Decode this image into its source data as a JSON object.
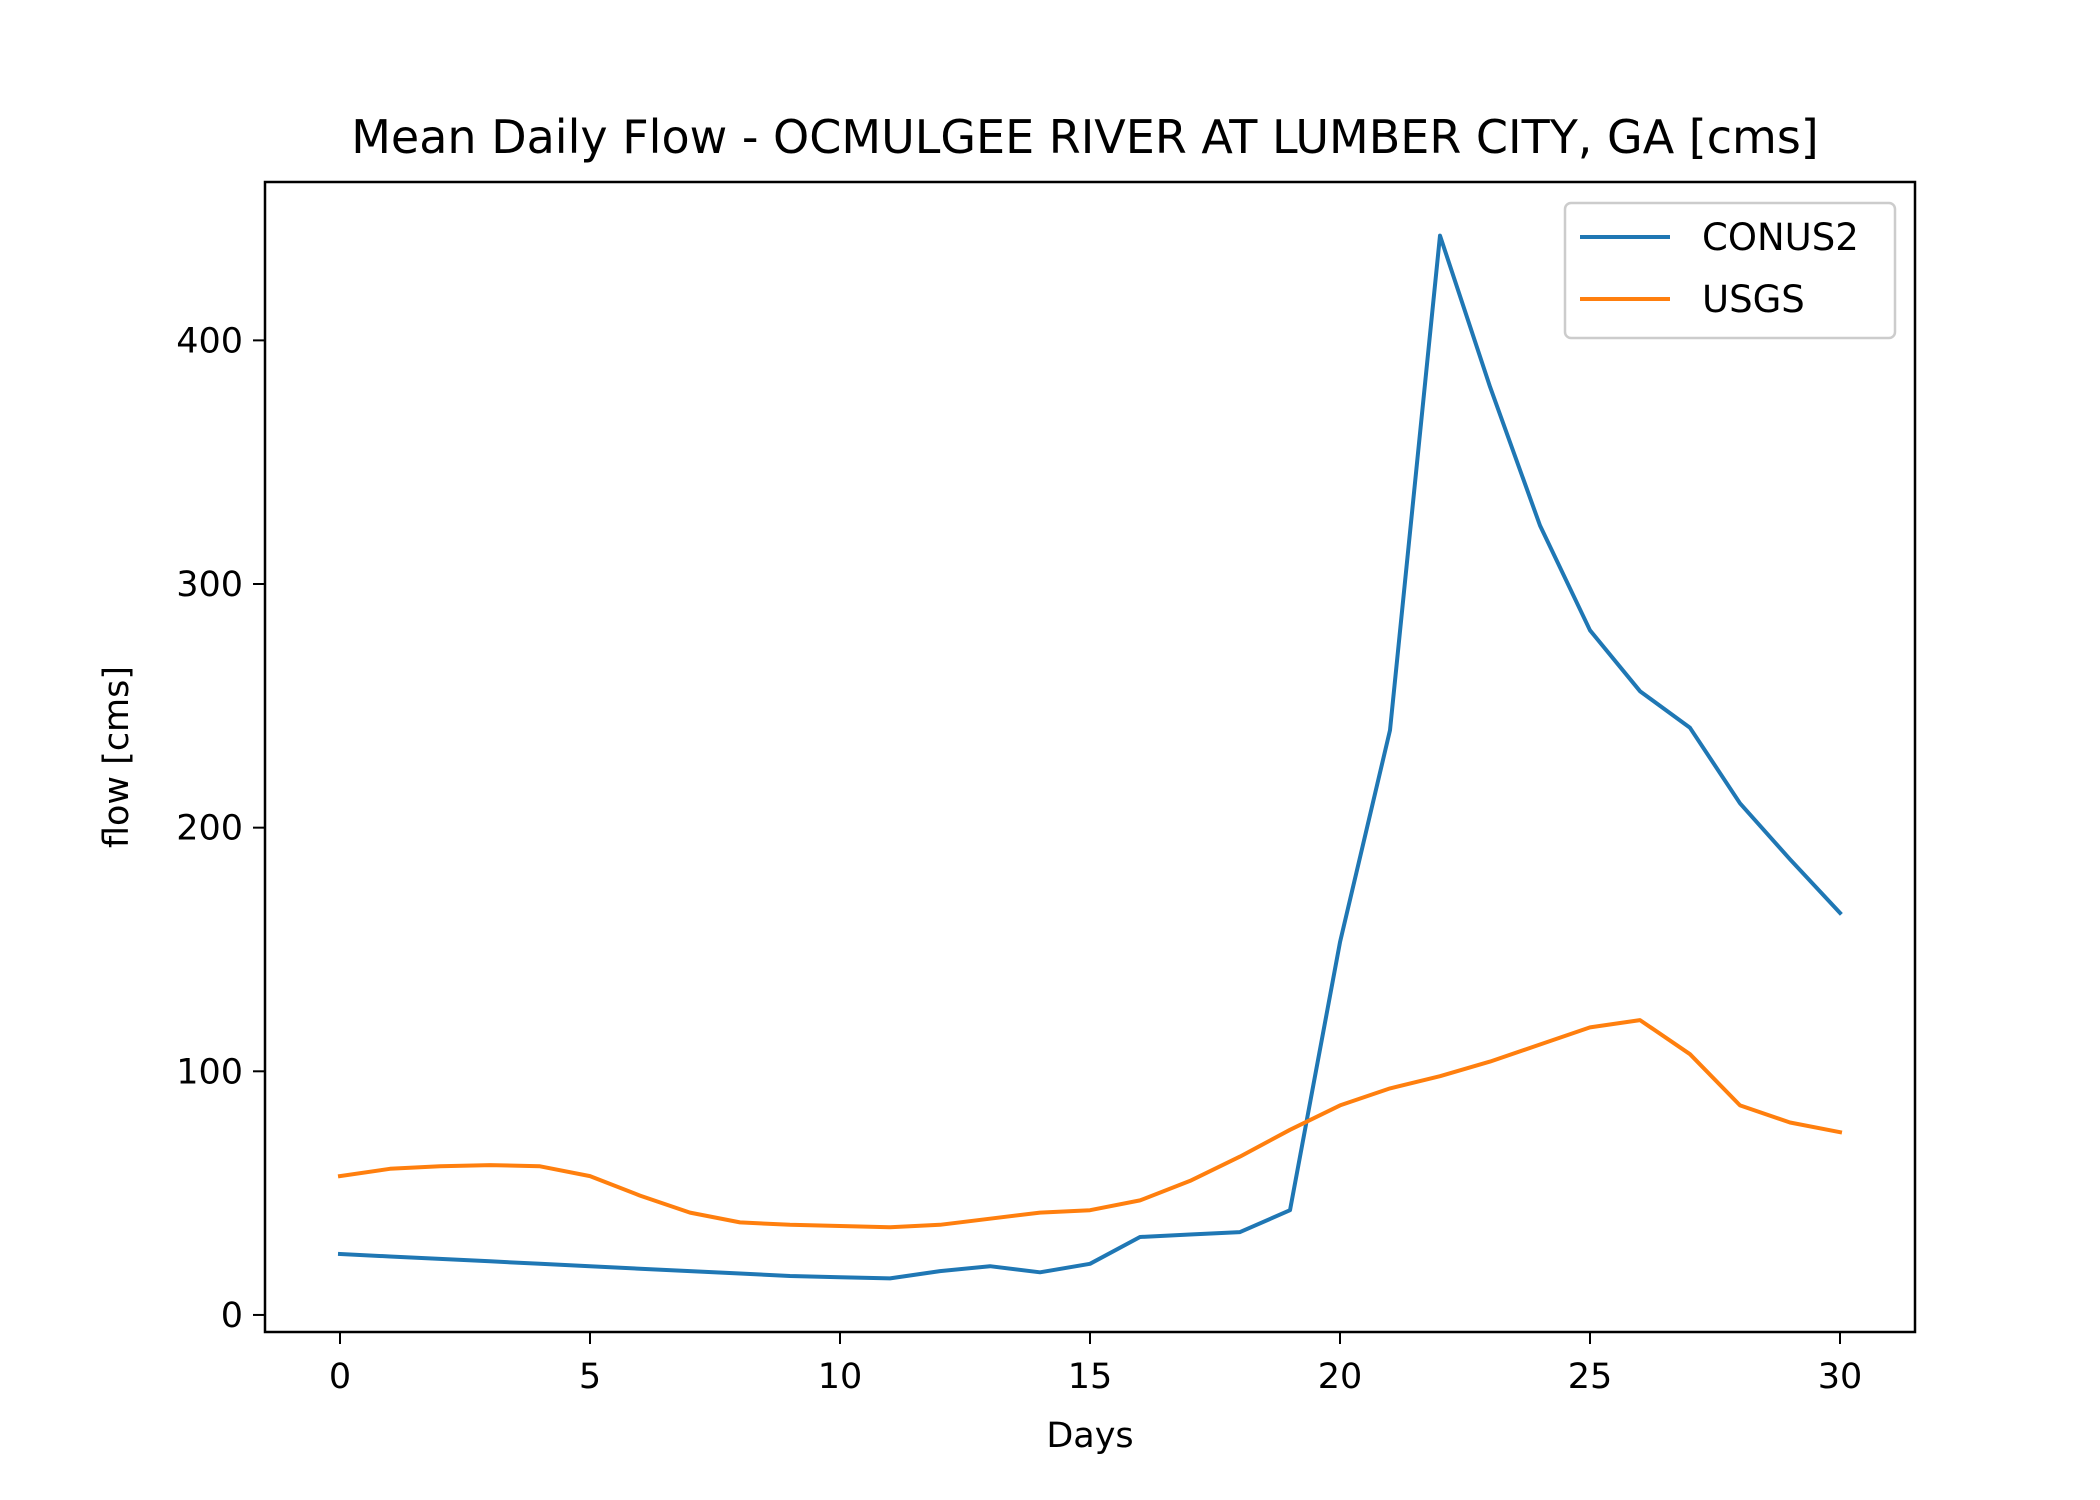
{
  "chart_data": {
    "type": "line",
    "title": "Mean Daily Flow - OCMULGEE RIVER AT LUMBER CITY, GA [cms]",
    "xlabel": "Days",
    "ylabel": "flow [cms]",
    "xlim": [
      -1.5,
      31.5
    ],
    "ylim": [
      -7,
      465
    ],
    "xticks": [
      0,
      5,
      10,
      15,
      20,
      25,
      30
    ],
    "yticks": [
      0,
      100,
      200,
      300,
      400
    ],
    "grid": false,
    "legend_position": "top-right",
    "x": [
      0,
      1,
      2,
      3,
      4,
      5,
      6,
      7,
      8,
      9,
      10,
      11,
      12,
      13,
      14,
      15,
      16,
      17,
      18,
      19,
      20,
      21,
      22,
      23,
      24,
      25,
      26,
      27,
      28,
      29,
      30
    ],
    "series": [
      {
        "name": "CONUS2",
        "color": "#1f77b4",
        "values": [
          25,
          24,
          23,
          22,
          21,
          20,
          19,
          18,
          17,
          16,
          15.5,
          15,
          18,
          20,
          17.5,
          21,
          32,
          33,
          34,
          43,
          153,
          240,
          443,
          381,
          324,
          281,
          256,
          241,
          210,
          187,
          165
        ]
      },
      {
        "name": "USGS",
        "color": "#ff7f0e",
        "values": [
          57,
          60,
          61,
          61.5,
          61,
          57,
          49,
          42,
          38,
          37,
          36.5,
          36,
          37,
          39.5,
          42,
          43,
          47,
          55,
          65,
          76,
          86,
          93,
          98,
          104,
          111,
          118,
          121,
          107,
          86,
          79,
          75
        ]
      }
    ]
  }
}
